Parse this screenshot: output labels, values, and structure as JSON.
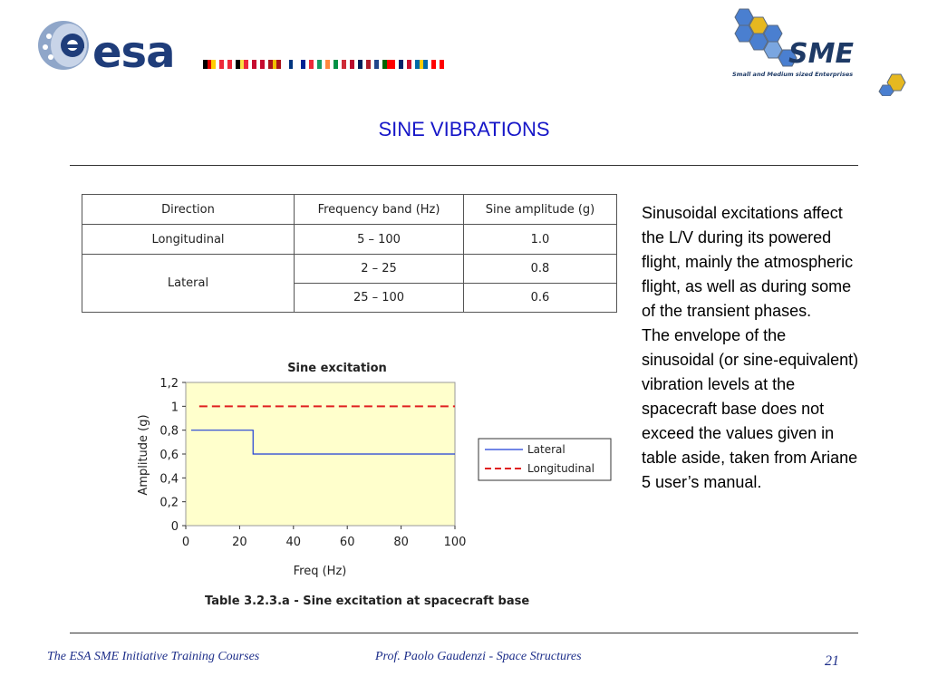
{
  "header": {
    "esa_logo_text": "esa",
    "sme_logo_text": "SME",
    "sme_logo_subtitle": "Small and Medium sized Enterprises",
    "flags": [
      [
        "#000000",
        "#dd0000",
        "#ffce00"
      ],
      [
        "#ed2939",
        "#ffffff",
        "#ed2939"
      ],
      [
        "#000000",
        "#fae042",
        "#ed2939"
      ],
      [
        "#c60c30",
        "#ffffff",
        "#c60c30"
      ],
      [
        "#aa151b",
        "#f1bf00",
        "#aa151b"
      ],
      [
        "#ffffff",
        "#003580",
        "#ffffff"
      ],
      [
        "#002395",
        "#ffffff",
        "#ed2939"
      ],
      [
        "#169b62",
        "#ffffff",
        "#ff883e"
      ],
      [
        "#009246",
        "#ffffff",
        "#ce2b37"
      ],
      [
        "#ba0c2f",
        "#ffffff",
        "#00205b"
      ],
      [
        "#ae1c28",
        "#ffffff",
        "#21468b"
      ],
      [
        "#006600",
        "#ff0000",
        "#ff0000"
      ],
      [
        "#012169",
        "#ffffff",
        "#c8102e"
      ],
      [
        "#006aa7",
        "#fecc00",
        "#006aa7"
      ],
      [
        "#ff0000",
        "#ffffff",
        "#ff0000"
      ]
    ]
  },
  "title": "SINE VIBRATIONS",
  "table": {
    "headers": [
      "Direction",
      "Frequency band (Hz)",
      "Sine amplitude (g)"
    ],
    "rows": [
      {
        "direction": "Longitudinal",
        "band": "5 – 100",
        "amplitude": "1.0"
      },
      {
        "direction": "Lateral",
        "band": "2 – 25",
        "amplitude": "0.8"
      },
      {
        "direction": "",
        "band": "25 – 100",
        "amplitude": "0.6"
      }
    ]
  },
  "chart_data": {
    "type": "line",
    "title": "Sine excitation",
    "xlabel": "Freq (Hz)",
    "ylabel": "Amplitude (g)",
    "xlim": [
      0,
      100
    ],
    "ylim": [
      0,
      1.2
    ],
    "x_ticks": [
      "0",
      "20",
      "40",
      "60",
      "80",
      "100"
    ],
    "y_ticks": [
      "0",
      "0,2",
      "0,4",
      "0,6",
      "0,8",
      "1",
      "1,2"
    ],
    "grid": false,
    "legend_position": "right",
    "plot_background": "#ffffcc",
    "series": [
      {
        "name": "Lateral",
        "color": "#1f3fd6",
        "style": "solid",
        "points": [
          [
            2,
            0.8
          ],
          [
            25,
            0.8
          ],
          [
            25,
            0.6
          ],
          [
            100,
            0.6
          ]
        ]
      },
      {
        "name": "Longitudinal",
        "color": "#e02020",
        "style": "dashed",
        "points": [
          [
            5,
            1.0
          ],
          [
            100,
            1.0
          ]
        ]
      }
    ]
  },
  "caption": "Table 3.2.3.a - Sine excitation at spacecraft base",
  "body_text": [
    "Sinusoidal excitations affect the L/V during its powered flight, mainly the atmospheric flight, as well as during some of the transient phases.",
    "The envelope of the sinusoidal (or sine-equivalent) vibration levels at the spacecraft base does not exceed the values given in table aside, taken from Ariane 5 user’s manual."
  ],
  "footer": {
    "left": "The ESA SME Initiative Training Courses",
    "center": "Prof. Paolo Gaudenzi  -  Space Structures",
    "page_number": "21"
  }
}
